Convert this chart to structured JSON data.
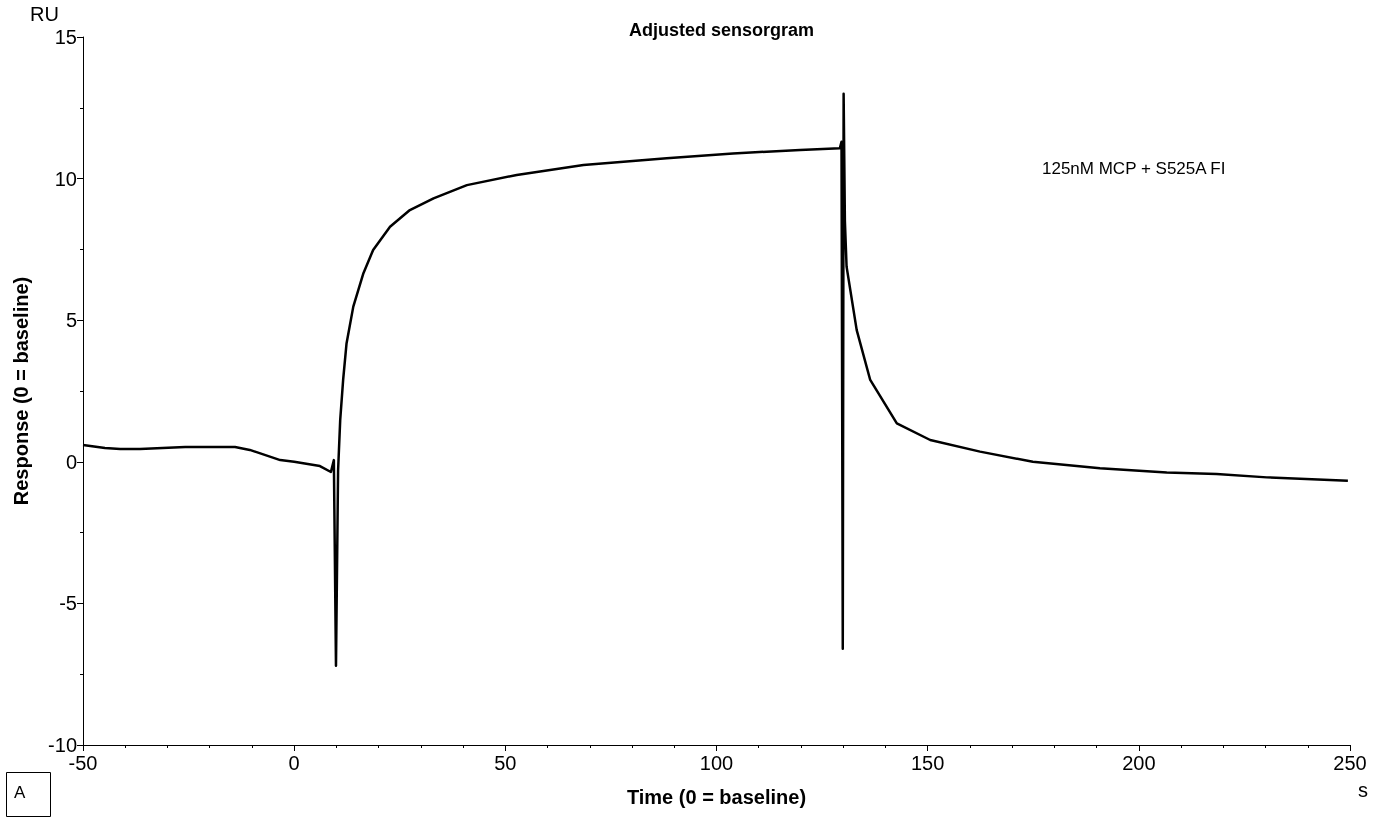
{
  "chart_data": {
    "type": "line",
    "title": "Adjusted sensorgram",
    "xlabel": "Time (0 = baseline)",
    "ylabel": "Response (0 = baseline)",
    "annotations": [
      "125nM MCP + S525A FI",
      "RU",
      "s",
      "A"
    ],
    "x": [
      -50,
      -44.8,
      -41.2,
      -36.5,
      -25.8,
      -14,
      -10.5,
      -3.3,
      0,
      6.1,
      8.7,
      9.4,
      9.9,
      10.4,
      10.9,
      11.6,
      12.4,
      14,
      16.4,
      18.7,
      22.7,
      27.4,
      33,
      40.9,
      52.7,
      68.5,
      88.2,
      103.9,
      119.8,
      129.2,
      129.6,
      129.9,
      130.1,
      130.4,
      130.8,
      133.2,
      136.4,
      142.7,
      150.6,
      162.4,
      174.9,
      190.8,
      206.6,
      218.4,
      230.3,
      249.5
    ],
    "series": [
      {
        "color": "#000000",
        "values": [
          0.59,
          0.49,
          0.45,
          0.45,
          0.52,
          0.52,
          0.42,
          0.06,
          0,
          -0.15,
          -0.36,
          0.06,
          -7.2,
          -0.3,
          1.47,
          2.9,
          4.18,
          5.48,
          6.66,
          7.48,
          8.3,
          8.89,
          9.3,
          9.77,
          10.13,
          10.48,
          10.72,
          10.89,
          11.01,
          11.07,
          11.3,
          -6.6,
          13,
          8.5,
          6.89,
          4.65,
          2.89,
          1.36,
          0.77,
          0.36,
          0,
          -0.23,
          -0.38,
          -0.43,
          -0.55,
          -0.67
        ]
      }
    ],
    "xlim": [
      -50,
      250
    ],
    "xticks": [
      -50,
      0,
      50,
      100,
      150,
      200,
      250
    ],
    "ylim": [
      -10,
      15
    ],
    "yticks": [
      -10,
      -5,
      0,
      5,
      10,
      15
    ],
    "grid": false,
    "marker": "none",
    "line_style": "solid"
  }
}
